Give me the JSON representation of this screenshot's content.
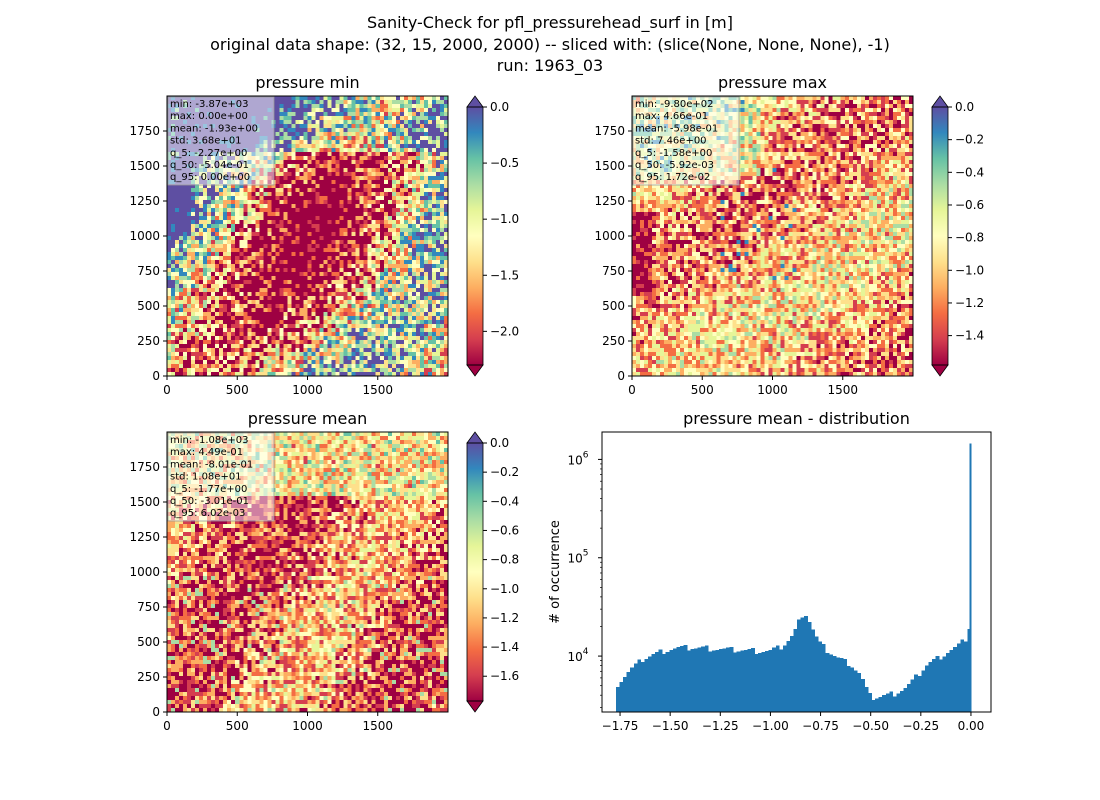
{
  "suptitle": {
    "line1": "Sanity-Check for pfl_pressurehead_surf in [m]",
    "line2": "original data shape: (32, 15, 2000, 2000) -- sliced with: (slice(None, None, None), -1)",
    "line3": "run: 1963_03"
  },
  "colors": {
    "spectral": [
      "#9e0142",
      "#d53e4f",
      "#f46d43",
      "#fdae61",
      "#fee08b",
      "#ffffbf",
      "#e6f598",
      "#abdda4",
      "#66c2a5",
      "#3288bd",
      "#5e4fa2"
    ],
    "hist_bar": "#1f77b4"
  },
  "chart_data": [
    {
      "type": "heatmap",
      "title": "pressure min",
      "colormap": "Spectral",
      "x_ticks": [
        "0",
        "500",
        "1000",
        "1500"
      ],
      "y_ticks": [
        "0",
        "250",
        "500",
        "750",
        "1000",
        "1250",
        "1500",
        "1750"
      ],
      "x_range": [
        0,
        2000
      ],
      "y_range": [
        0,
        2000
      ],
      "colorbar": {
        "range": [
          -2.3,
          0.0
        ],
        "ticks": [
          "0.0",
          "−0.5",
          "−1.0",
          "−1.5",
          "−2.0"
        ],
        "extend": "both"
      },
      "stats": [
        "min: -3.87e+03",
        "max: 0.00e+00",
        "mean: -1.93e+00",
        "std: 3.68e+01",
        "q_5: -2.27e+00",
        "q_50: -5.04e-01",
        "q_95: 0.00e+00"
      ]
    },
    {
      "type": "heatmap",
      "title": "pressure max",
      "colormap": "Spectral",
      "x_ticks": [
        "0",
        "500",
        "1000",
        "1500"
      ],
      "y_ticks": [
        "0",
        "250",
        "500",
        "750",
        "1000",
        "1250",
        "1500",
        "1750"
      ],
      "x_range": [
        0,
        2000
      ],
      "y_range": [
        0,
        2000
      ],
      "colorbar": {
        "range": [
          -1.58,
          0.0
        ],
        "ticks": [
          "0.0",
          "−0.2",
          "−0.4",
          "−0.6",
          "−0.8",
          "−1.0",
          "−1.2",
          "−1.4"
        ],
        "extend": "both"
      },
      "stats": [
        "min: -9.80e+02",
        "max: 4.66e-01",
        "mean: -5.98e-01",
        "std: 7.46e+00",
        "q_5: -1.58e+00",
        "q_50: -5.92e-03",
        "q_95: 1.72e-02"
      ]
    },
    {
      "type": "heatmap",
      "title": "pressure mean",
      "colormap": "Spectral",
      "x_ticks": [
        "0",
        "500",
        "1000",
        "1500"
      ],
      "y_ticks": [
        "0",
        "250",
        "500",
        "750",
        "1000",
        "1250",
        "1500",
        "1750"
      ],
      "x_range": [
        0,
        2000
      ],
      "y_range": [
        0,
        2000
      ],
      "colorbar": {
        "range": [
          -1.77,
          0.0
        ],
        "ticks": [
          "0.0",
          "−0.2",
          "−0.4",
          "−0.6",
          "−0.8",
          "−1.0",
          "−1.2",
          "−1.4",
          "−1.6"
        ],
        "extend": "both"
      },
      "stats": [
        "min: -1.08e+03",
        "max: 4.49e-01",
        "mean: -8.01e-01",
        "std: 1.08e+01",
        "q_5: -1.77e+00",
        "q_50: -3.01e-01",
        "q_95: 6.02e-03"
      ]
    },
    {
      "type": "bar",
      "title": "pressure mean - distribution",
      "ylabel": "# of occurrence",
      "yscale": "log",
      "xlim": [
        -1.84,
        0.1
      ],
      "ylim": [
        2700,
        1900000
      ],
      "x_ticks": [
        -1.75,
        -1.5,
        -1.25,
        -1.0,
        -0.75,
        -0.5,
        -0.25,
        0.0
      ],
      "x_tick_labels": [
        "−1.75",
        "−1.50",
        "−1.25",
        "−1.00",
        "−0.75",
        "−0.50",
        "−0.25",
        "0.00"
      ],
      "y_ticks": [
        {
          "value": 10000,
          "base": "10",
          "exp": "4"
        },
        {
          "value": 100000,
          "base": "10",
          "exp": "5"
        },
        {
          "value": 1000000,
          "base": "10",
          "exp": "6"
        }
      ],
      "bin_width": 0.0177,
      "points": [
        [
          -1.77,
          5000
        ],
        [
          -1.7,
          7200
        ],
        [
          -1.63,
          9500
        ],
        [
          -1.55,
          11000
        ],
        [
          -1.48,
          12000
        ],
        [
          -1.4,
          12200
        ],
        [
          -1.3,
          12000
        ],
        [
          -1.2,
          11600
        ],
        [
          -1.1,
          11400
        ],
        [
          -1.0,
          11300
        ],
        [
          -0.95,
          12300
        ],
        [
          -0.9,
          15000
        ],
        [
          -0.87,
          19000
        ],
        [
          -0.85,
          25000
        ],
        [
          -0.83,
          28500
        ],
        [
          -0.81,
          24000
        ],
        [
          -0.79,
          19000
        ],
        [
          -0.76,
          14000
        ],
        [
          -0.72,
          11500
        ],
        [
          -0.66,
          9500
        ],
        [
          -0.6,
          8300
        ],
        [
          -0.55,
          6500
        ],
        [
          -0.52,
          4500
        ],
        [
          -0.5,
          3800
        ],
        [
          -0.45,
          3900
        ],
        [
          -0.38,
          4200
        ],
        [
          -0.32,
          4800
        ],
        [
          -0.27,
          6200
        ],
        [
          -0.22,
          8200
        ],
        [
          -0.15,
          10000
        ],
        [
          -0.08,
          12000
        ],
        [
          -0.04,
          14000
        ],
        [
          -0.015,
          16000
        ],
        [
          -0.005,
          22000
        ],
        [
          0.0,
          1450000
        ]
      ]
    }
  ]
}
